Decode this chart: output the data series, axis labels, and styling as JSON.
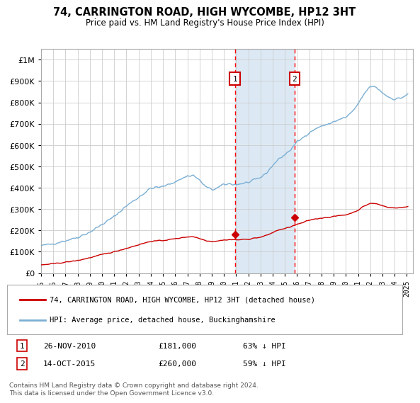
{
  "title": "74, CARRINGTON ROAD, HIGH WYCOMBE, HP12 3HT",
  "subtitle": "Price paid vs. HM Land Registry's House Price Index (HPI)",
  "background_color": "#ffffff",
  "plot_bg_color": "#ffffff",
  "grid_color": "#cccccc",
  "hpi_line_color": "#7bafd4",
  "price_line_color": "#cc0000",
  "shade_color": "#dce9f5",
  "transaction1_date": "26-NOV-2010",
  "transaction1_price": 181000,
  "transaction1_label": "1",
  "transaction1_year": 2010.9,
  "transaction2_date": "14-OCT-2015",
  "transaction2_price": 260000,
  "transaction2_label": "2",
  "transaction2_year": 2015.79,
  "xmin": 1995.0,
  "xmax": 2025.5,
  "ymin": 0,
  "ymax": 1050000,
  "legend_line1": "74, CARRINGTON ROAD, HIGH WYCOMBE, HP12 3HT (detached house)",
  "legend_line2": "HPI: Average price, detached house, Buckinghamshire",
  "footnote": "Contains HM Land Registry data © Crown copyright and database right 2024.\nThis data is licensed under the Open Government Licence v3.0."
}
